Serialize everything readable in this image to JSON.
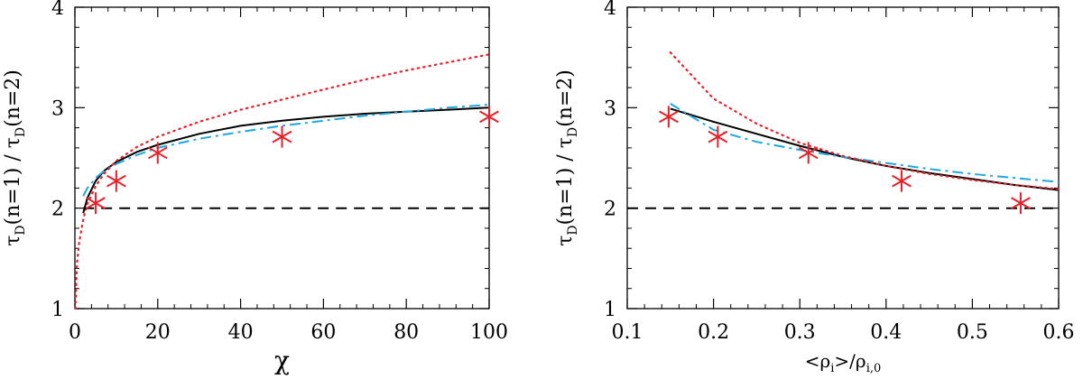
{
  "chart_data": [
    {
      "type": "line",
      "xlabel": "χ",
      "ylabel": "τD(n=1) / τD(n=2)",
      "xlim": [
        0,
        100
      ],
      "ylim": [
        1,
        4
      ],
      "xticks": [
        0,
        20,
        40,
        60,
        80,
        100
      ],
      "yticks": [
        1,
        2,
        3,
        4
      ],
      "xtick_labels": [
        "0",
        "20",
        "40",
        "60",
        "80",
        "100"
      ],
      "ytick_labels": [
        "1",
        "2",
        "3",
        "4"
      ],
      "colors": {
        "black": "#000000",
        "red": "#e8202a",
        "blue": "#1ea7e1"
      },
      "series": [
        {
          "name": "solid black curve",
          "style": "solid",
          "color": "#000000",
          "x": [
            2,
            3,
            5,
            7,
            10,
            15,
            20,
            30,
            40,
            50,
            60,
            70,
            80,
            90,
            100
          ],
          "y": [
            1.95,
            2.1,
            2.27,
            2.37,
            2.46,
            2.56,
            2.63,
            2.74,
            2.82,
            2.87,
            2.91,
            2.94,
            2.96,
            2.98,
            3.0
          ]
        },
        {
          "name": "dash-dot blue curve",
          "style": "dashdot",
          "color": "#1ea7e1",
          "x": [
            2,
            3,
            5,
            7,
            10,
            15,
            20,
            30,
            40,
            50,
            60,
            70,
            80,
            90,
            100
          ],
          "y": [
            2.12,
            2.2,
            2.3,
            2.37,
            2.44,
            2.53,
            2.6,
            2.69,
            2.76,
            2.82,
            2.87,
            2.92,
            2.96,
            3.0,
            3.03
          ]
        },
        {
          "name": "dotted red curve",
          "style": "dotted",
          "color": "#e8202a",
          "x": [
            0.1,
            0.5,
            1,
            2,
            3,
            5,
            7,
            10,
            15,
            20,
            30,
            40,
            50,
            60,
            70,
            80,
            90,
            100
          ],
          "y": [
            1.0,
            1.45,
            1.65,
            1.89,
            2.04,
            2.22,
            2.34,
            2.47,
            2.61,
            2.71,
            2.86,
            2.98,
            3.08,
            3.18,
            3.28,
            3.37,
            3.45,
            3.53
          ]
        },
        {
          "name": "dashed reference",
          "style": "dashed",
          "color": "#000000",
          "x": [
            2,
            100
          ],
          "y": [
            2.0,
            2.0
          ]
        }
      ],
      "markers": {
        "name": "simulation points",
        "symbol": "asterisk",
        "color": "#e8202a",
        "x": [
          5,
          10,
          20,
          50,
          100
        ],
        "y": [
          2.05,
          2.27,
          2.55,
          2.71,
          2.91
        ]
      }
    },
    {
      "type": "line",
      "xlabel": "<ρi>/ρi,0",
      "ylabel": "τD(n=1) / τD(n=2)",
      "xlim": [
        0.1,
        0.6
      ],
      "ylim": [
        1,
        4
      ],
      "xticks": [
        0.1,
        0.2,
        0.3,
        0.4,
        0.5,
        0.6
      ],
      "yticks": [
        1,
        2,
        3,
        4
      ],
      "xtick_labels": [
        "0.1",
        "0.2",
        "0.3",
        "0.4",
        "0.5",
        "0.6"
      ],
      "ytick_labels": [
        "1",
        "2",
        "3",
        "4"
      ],
      "colors": {
        "black": "#000000",
        "red": "#e8202a",
        "blue": "#1ea7e1"
      },
      "series": [
        {
          "name": "solid black curve",
          "style": "solid",
          "color": "#000000",
          "x": [
            0.15,
            0.2,
            0.25,
            0.3,
            0.35,
            0.4,
            0.45,
            0.5,
            0.55,
            0.6
          ],
          "y": [
            2.99,
            2.86,
            2.74,
            2.62,
            2.51,
            2.42,
            2.35,
            2.29,
            2.23,
            2.18
          ]
        },
        {
          "name": "dash-dot blue curve",
          "style": "dashdot",
          "color": "#1ea7e1",
          "x": [
            0.15,
            0.2,
            0.25,
            0.3,
            0.35,
            0.4,
            0.45,
            0.5,
            0.55,
            0.6
          ],
          "y": [
            3.04,
            2.78,
            2.66,
            2.58,
            2.51,
            2.45,
            2.39,
            2.34,
            2.3,
            2.26
          ]
        },
        {
          "name": "dotted red curve",
          "style": "dotted",
          "color": "#e8202a",
          "x": [
            0.15,
            0.2,
            0.25,
            0.3,
            0.35,
            0.4,
            0.45,
            0.5,
            0.55,
            0.6
          ],
          "y": [
            3.55,
            3.09,
            2.84,
            2.65,
            2.52,
            2.42,
            2.34,
            2.28,
            2.23,
            2.19
          ]
        },
        {
          "name": "dashed reference",
          "style": "dashed",
          "color": "#000000",
          "x": [
            0.1,
            0.6
          ],
          "y": [
            2.0,
            2.0
          ]
        }
      ],
      "markers": {
        "name": "simulation points",
        "symbol": "asterisk",
        "color": "#e8202a",
        "x": [
          0.148,
          0.205,
          0.31,
          0.418,
          0.556
        ],
        "y": [
          2.91,
          2.71,
          2.55,
          2.27,
          2.05
        ]
      }
    }
  ]
}
